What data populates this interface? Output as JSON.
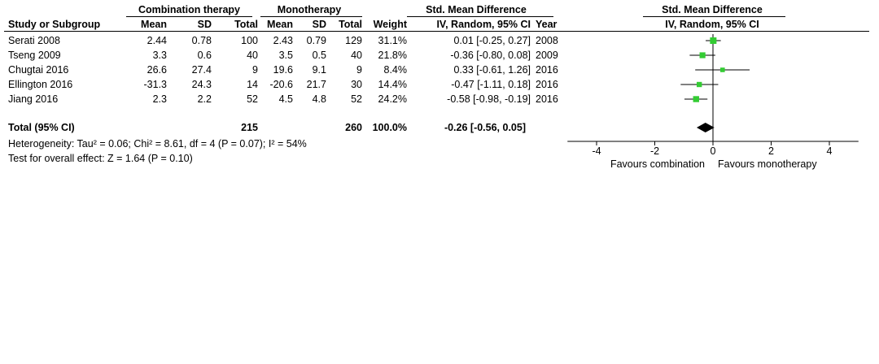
{
  "header": {
    "group1": "Combination therapy",
    "group2": "Monotherapy",
    "smd_header": "Std. Mean Difference",
    "plot_header": "Std. Mean Difference",
    "study_col": "Study or Subgroup",
    "mean1": "Mean",
    "sd1": "SD",
    "total1": "Total",
    "mean2": "Mean",
    "sd2": "SD",
    "total2": "Total",
    "weight": "Weight",
    "method": "IV, Random, 95% CI",
    "year": "Year",
    "plot_method": "IV, Random, 95% CI"
  },
  "studies": [
    {
      "name": "Serati 2008",
      "mean1": "2.44",
      "sd1": "0.78",
      "total1": "100",
      "mean2": "2.43",
      "sd2": "0.79",
      "total2": "129",
      "weight": "31.1%",
      "ci": "0.01 [-0.25, 0.27]",
      "year": "2008"
    },
    {
      "name": "Tseng 2009",
      "mean1": "3.3",
      "sd1": "0.6",
      "total1": "40",
      "mean2": "3.5",
      "sd2": "0.5",
      "total2": "40",
      "weight": "21.8%",
      "ci": "-0.36 [-0.80, 0.08]",
      "year": "2009"
    },
    {
      "name": "Chugtai 2016",
      "mean1": "26.6",
      "sd1": "27.4",
      "total1": "9",
      "mean2": "19.6",
      "sd2": "9.1",
      "total2": "9",
      "weight": "8.4%",
      "ci": "0.33 [-0.61, 1.26]",
      "year": "2016"
    },
    {
      "name": "Ellington 2016",
      "mean1": "-31.3",
      "sd1": "24.3",
      "total1": "14",
      "mean2": "-20.6",
      "sd2": "21.7",
      "total2": "30",
      "weight": "14.4%",
      "ci": "-0.47 [-1.11, 0.18]",
      "year": "2016"
    },
    {
      "name": "Jiang 2016",
      "mean1": "2.3",
      "sd1": "2.2",
      "total1": "52",
      "mean2": "4.5",
      "sd2": "4.8",
      "total2": "52",
      "weight": "24.2%",
      "ci": "-0.58 [-0.98, -0.19]",
      "year": "2016"
    }
  ],
  "total": {
    "label": "Total (95% CI)",
    "total1": "215",
    "total2": "260",
    "weight": "100.0%",
    "ci": "-0.26 [-0.56, 0.05]"
  },
  "footer": {
    "heterogeneity": "Heterogeneity: Tau² = 0.06; Chi² = 8.61, df = 4 (P = 0.07); I² = 54%",
    "overall": "Test for overall effect: Z = 1.64 (P = 0.10)"
  },
  "axis": {
    "favours_left": "Favours combination",
    "favours_right": "Favours monotherapy"
  },
  "chart_data": {
    "type": "scatter",
    "subtype": "forest",
    "categories": [
      "Serati 2008",
      "Tseng 2009",
      "Chugtai 2016",
      "Ellington 2016",
      "Jiang 2016"
    ],
    "estimates": [
      0.01,
      -0.36,
      0.33,
      -0.47,
      -0.58
    ],
    "ci_lower": [
      -0.25,
      -0.8,
      -0.61,
      -1.11,
      -0.98
    ],
    "ci_upper": [
      0.27,
      0.08,
      1.26,
      0.18,
      -0.19
    ],
    "weights": [
      31.1,
      21.8,
      8.4,
      14.4,
      24.2
    ],
    "pooled": {
      "estimate": -0.26,
      "ci_lower": -0.56,
      "ci_upper": 0.05
    },
    "xlim": [
      -5,
      5
    ],
    "xticks": [
      -4,
      -2,
      0,
      2,
      4
    ],
    "tick_labels": [
      "-4",
      "-2",
      "0",
      "2",
      "4"
    ],
    "colors": {
      "marker": "#33cc33",
      "line": "#000000",
      "diamond": "#000000"
    }
  }
}
